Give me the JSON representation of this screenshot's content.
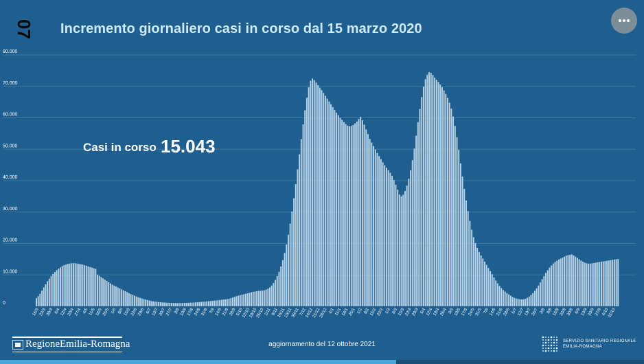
{
  "header": {
    "slide_number": "07",
    "title": "Incremento giornaliero casi in corso dal 15 marzo 2020"
  },
  "kpi": {
    "label": "Casi in corso",
    "value": "15.043"
  },
  "footer": {
    "logo_text": "RegioneEmilia-Romagna",
    "update_text": "aggiornamento del 12 ottobre 2021",
    "ssr_line1": "SERVIZIO SANITARIO REGIONALE",
    "ssr_line2": "EMILIA-ROMAGNA"
  },
  "progress": {
    "fraction": 0.615
  },
  "colors": {
    "background": "#1f5f8f",
    "bars": "#b9d3e4",
    "grid": "#3a78a6",
    "title": "#cfeaf5"
  },
  "icons": {
    "menu": "more-horizontal-icon"
  },
  "chart_data": {
    "type": "bar",
    "title": "Incremento giornaliero casi in corso dal 15 marzo 2020",
    "xlabel": "",
    "ylabel": "",
    "ylim": [
      0,
      80000
    ],
    "yticks": [
      0,
      10000,
      20000,
      30000,
      40000,
      50000,
      60000,
      70000,
      80000
    ],
    "ytick_labels": [
      "0",
      "10.000",
      "20.000",
      "30.000",
      "40.000",
      "50.000",
      "60.000",
      "70.000",
      "80.000"
    ],
    "grid": true,
    "x_start": "2020-03-15",
    "x_end": "2021-10-11",
    "series": [
      {
        "values": [
          2600,
          3200,
          4000,
          5000,
          6000,
          7000,
          8000,
          8800,
          9600,
          10300,
          10900,
          11500,
          12000,
          12400,
          12800,
          13100,
          13300,
          13500,
          13600,
          13700,
          13700,
          13700,
          13600,
          13500,
          13400,
          13300,
          13100,
          12900,
          12700,
          12500,
          12300,
          12100,
          11900,
          10100,
          9700,
          9300,
          8900,
          8500,
          8100,
          7700,
          7300,
          6900,
          6600,
          6300,
          6000,
          5700,
          5400,
          5100,
          4800,
          4500,
          4200,
          3900,
          3650,
          3400,
          3150,
          2900,
          2700,
          2500,
          2300,
          2150,
          2000,
          1850,
          1700,
          1600,
          1500,
          1420,
          1350,
          1300,
          1250,
          1200,
          1160,
          1130,
          1100,
          1080,
          1060,
          1050,
          1040,
          1040,
          1050,
          1060,
          1080,
          1100,
          1120,
          1150,
          1180,
          1220,
          1260,
          1300,
          1350,
          1400,
          1450,
          1500,
          1560,
          1620,
          1680,
          1740,
          1800,
          1870,
          1940,
          2010,
          2080,
          2150,
          2230,
          2310,
          2400,
          2600,
          2800,
          3000,
          3200,
          3400,
          3550,
          3700,
          3850,
          4000,
          4150,
          4300,
          4450,
          4600,
          4700,
          4800,
          4900,
          4950,
          5000,
          5100,
          5300,
          5600,
          6000,
          6600,
          7400,
          8400,
          9600,
          11000,
          12700,
          14700,
          17000,
          19700,
          22800,
          26300,
          30200,
          34400,
          38900,
          43600,
          48400,
          53200,
          57900,
          62400,
          66400,
          69700,
          71800,
          72500,
          72000,
          71200,
          70400,
          69600,
          68800,
          67900,
          67000,
          66100,
          65200,
          64300,
          63400,
          62500,
          61600,
          60800,
          60000,
          59300,
          58600,
          58000,
          57500,
          57300,
          57400,
          57700,
          58200,
          58800,
          59600,
          60300,
          59200,
          57800,
          56300,
          54800,
          53300,
          52100,
          51000,
          49900,
          48800,
          47800,
          46800,
          45800,
          44900,
          44100,
          43300,
          42500,
          41500,
          40200,
          38700,
          37100,
          35600,
          35000,
          35500,
          36700,
          38400,
          40600,
          43300,
          46500,
          50200,
          54300,
          58600,
          62800,
          66600,
          69900,
          72300,
          73700,
          74500,
          74300,
          73600,
          72800,
          72100,
          71400,
          70600,
          69700,
          68700,
          67600,
          66300,
          64800,
          62900,
          60400,
          57400,
          53800,
          49800,
          45500,
          41300,
          37400,
          33700,
          30300,
          27200,
          24400,
          22000,
          20100,
          18600,
          17300,
          16200,
          15200,
          14200,
          13200,
          12200,
          11200,
          10200,
          9200,
          8200,
          7300,
          6500,
          5800,
          5200,
          4700,
          4200,
          3800,
          3400,
          3000,
          2700,
          2500,
          2350,
          2250,
          2200,
          2250,
          2400,
          2700,
          3100,
          3600,
          4200,
          4900,
          5700,
          6600,
          7600,
          8600,
          9600,
          10600,
          11500,
          12300,
          13000,
          13600,
          14100,
          14500,
          14900,
          15200,
          15500,
          15800,
          16100,
          16300,
          16400,
          16500,
          16200,
          15800,
          15400,
          15000,
          14600,
          14200,
          13900,
          13700,
          13600,
          13600,
          13700,
          13800,
          13900,
          14000,
          14100,
          14200,
          14300,
          14400,
          14500,
          14600,
          14700,
          14800,
          14900,
          15000,
          15043
        ]
      }
    ],
    "x_tick_labels": [
      "16/3",
      "23/3",
      "30/3",
      "6/4",
      "13/4",
      "20/4",
      "27/4",
      "4/5",
      "11/5",
      "18/5",
      "25/5",
      "1/6",
      "8/6",
      "15/6",
      "22/6",
      "29/6",
      "6/7",
      "13/7",
      "20/7",
      "27/7",
      "3/8",
      "10/8",
      "17/8",
      "24/8",
      "31/8",
      "7/9",
      "14/9",
      "21/9",
      "28/9",
      "5/10",
      "12/10",
      "19/10",
      "26/10",
      "2/11",
      "9/11",
      "16/11",
      "23/11",
      "30/11",
      "7/12",
      "14/12",
      "21/12",
      "28/12",
      "4/1",
      "11/1",
      "18/1",
      "25/1",
      "1/2",
      "8/2",
      "15/2",
      "22/2",
      "1/3",
      "8/3",
      "15/3",
      "22/3",
      "29/3",
      "5/4",
      "12/4",
      "19/4",
      "26/4",
      "3/5",
      "10/5",
      "17/5",
      "24/5",
      "31/5",
      "7/6",
      "14/6",
      "21/6",
      "28/6",
      "5/7",
      "12/7",
      "19/7",
      "26/7",
      "2/8",
      "9/8",
      "16/8",
      "23/8",
      "30/8",
      "6/9",
      "13/9",
      "20/9",
      "27/9",
      "4/10",
      "11/10"
    ]
  }
}
